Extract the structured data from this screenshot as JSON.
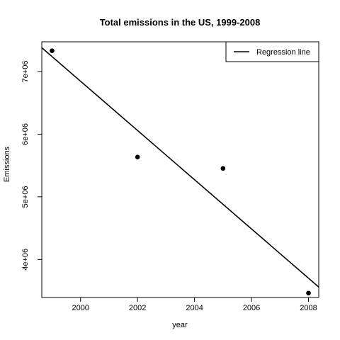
{
  "chart_data": {
    "type": "scatter",
    "title": "Total emissions in the US, 1999-2008",
    "xlabel": "year",
    "ylabel": "Emissions",
    "x_ticks": [
      2000,
      2002,
      2004,
      2006,
      2008
    ],
    "x_tick_labels": [
      "2000",
      "2002",
      "2004",
      "2006",
      "2008"
    ],
    "y_ticks": [
      4000000,
      5000000,
      6000000,
      7000000
    ],
    "y_tick_labels": [
      "4e+06",
      "5e+06",
      "6e+06",
      "7e+06"
    ],
    "xlim": [
      1998.64,
      2008.36
    ],
    "ylim": [
      3393200,
      7474800
    ],
    "series": [
      {
        "x": [
          1999,
          2002,
          2005,
          2008
        ],
        "y": [
          7332000,
          5635000,
          5454000,
          3464000
        ]
      }
    ],
    "regression_line": {
      "x": [
        1998.64,
        2008.36
      ],
      "y": [
        7380000,
        3560000
      ]
    },
    "legend": {
      "position": "top-right",
      "entries": [
        "Regression line"
      ]
    },
    "grid": false
  }
}
